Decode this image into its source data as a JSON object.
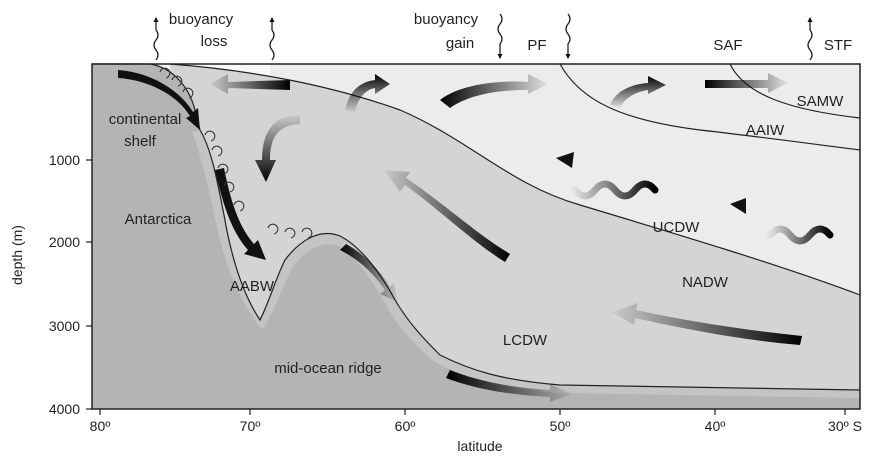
{
  "top_labels": {
    "buoyancy_loss_1": "buoyancy",
    "buoyancy_loss_2": "loss",
    "buoyancy_gain_1": "buoyancy",
    "buoyancy_gain_2": "gain",
    "pf": "PF",
    "saf": "SAF",
    "stf": "STF"
  },
  "regions": {
    "continental_shelf_1": "continental",
    "continental_shelf_2": "shelf",
    "antarctica": "Antarctica",
    "aabw": "AABW",
    "mid_ocean_ridge": "mid-ocean ridge",
    "lcdw": "LCDW",
    "nadw": "NADW",
    "ucdw": "UCDW",
    "aaiw": "AAIW",
    "samw": "SAMW"
  },
  "axes": {
    "y_label": "depth (m)",
    "x_label": "latitude",
    "y_ticks": [
      "1000",
      "2000",
      "3000",
      "4000"
    ],
    "x_ticks": [
      "80º",
      "70º",
      "60º",
      "50º",
      "40º",
      "30º S"
    ]
  },
  "colors": {
    "land": "#b4b4b4",
    "deep_water": "#d4d4d4",
    "upper_water": "#ececec",
    "surface_water": "#f8f8f8",
    "arrow": "#111111",
    "outline": "#222222"
  }
}
